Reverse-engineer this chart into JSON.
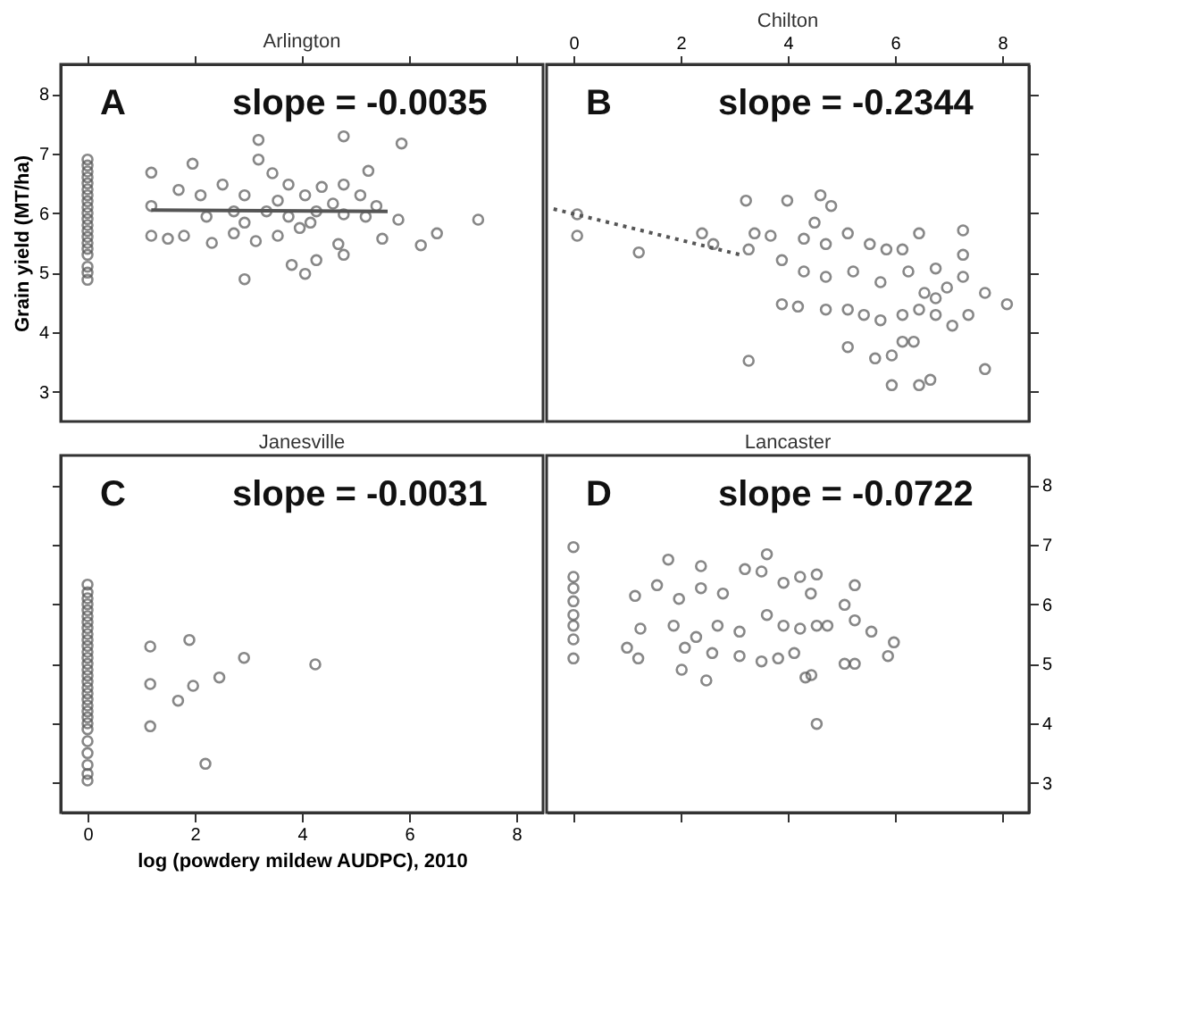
{
  "chart_data": [
    {
      "type": "scatter",
      "title": "Arlington",
      "ylabel": "Grain yield (MT/ha)",
      "annotations": [
        "A",
        "slope = -0.0035"
      ],
      "xlim": [
        -0.5,
        8.5
      ],
      "xticks": [
        {
          "value": 0,
          "label": null
        },
        {
          "value": 2,
          "label": null
        },
        {
          "value": 4,
          "label": null
        },
        {
          "value": 6,
          "label": null
        },
        {
          "value": 8,
          "label": null
        }
      ],
      "ylim": [
        2.5,
        8.5
      ],
      "yticks": [
        3,
        4,
        5,
        6,
        7,
        8
      ],
      "tick_labels": "y",
      "grid": false,
      "marker": "circle",
      "series": [
        {
          "color": "#555555",
          "x": [
            0,
            0,
            0,
            0,
            0,
            0,
            0,
            0,
            0,
            0,
            0,
            0,
            0,
            0,
            0,
            0,
            0,
            0,
            0,
            0,
            1.19,
            1.19,
            1.96,
            3.19,
            3.19,
            4.78,
            5.86,
            5.24,
            7.29,
            6.52,
            6.22,
            2.93,
            3.81,
            4.06,
            4.27,
            4.78,
            4.68,
            5.5,
            5.8,
            1.19,
            1.5,
            1.8,
            2.32,
            2.73,
            3.14,
            3.55,
            3.96,
            4.16,
            1.7,
            2.11,
            2.52,
            2.93,
            3.45,
            3.75,
            4.06,
            4.37,
            4.78,
            5.09,
            5.39,
            5.19,
            2.73,
            3.34,
            3.75,
            4.27,
            4.78,
            2.22,
            2.93,
            3.55,
            4.58
          ],
          "values": [
            6.9,
            6.8,
            6.7,
            6.6,
            6.5,
            6.4,
            6.3,
            6.2,
            6.1,
            6.0,
            5.9,
            5.8,
            5.7,
            5.6,
            5.5,
            5.4,
            5.3,
            5.1,
            5.0,
            4.88,
            6.12,
            6.68,
            6.83,
            7.23,
            6.9,
            7.29,
            7.17,
            6.71,
            5.89,
            5.66,
            5.46,
            4.89,
            5.13,
            4.98,
            5.21,
            5.3,
            5.48,
            5.57,
            5.89,
            5.62,
            5.57,
            5.62,
            5.5,
            5.66,
            5.53,
            5.62,
            5.75,
            5.84,
            6.39,
            6.3,
            6.48,
            6.3,
            6.67,
            6.48,
            6.3,
            6.44,
            6.48,
            6.3,
            6.12,
            5.94,
            6.03,
            6.03,
            5.94,
            6.03,
            5.98,
            5.94,
            5.84,
            6.21,
            6.16
          ]
        },
        {
          "type": "line",
          "marker": "none",
          "color": "#555555",
          "line_style": "solid",
          "x": [
            1.19,
            5.6
          ],
          "values": [
            6.05,
            6.03
          ]
        }
      ]
    },
    {
      "type": "scatter",
      "title": "Chilton",
      "annotations": [
        "B",
        "slope = -0.2344"
      ],
      "xlim": [
        -0.5,
        8.5
      ],
      "xticks": [
        0,
        2,
        4,
        6,
        8
      ],
      "ylim": [
        2.5,
        8.5
      ],
      "yticks": [
        {
          "value": 3,
          "label": null
        },
        {
          "value": 4,
          "label": null
        },
        {
          "value": 5,
          "label": null
        },
        {
          "value": 6,
          "label": null
        },
        {
          "value": 7,
          "label": null
        },
        {
          "value": 8,
          "label": null
        }
      ],
      "tick_labels": "x",
      "grid": false,
      "marker": "circle",
      "series": [
        {
          "color": "#555555",
          "x": [
            0.07,
            0.07,
            1.22,
            2.4,
            2.61,
            3.22,
            3.27,
            3.99,
            4.61,
            4.81,
            3.38,
            3.68,
            3.89,
            4.3,
            4.5,
            4.71,
            5.12,
            5.53,
            5.84,
            6.14,
            6.45,
            7.27,
            7.27,
            3.89,
            4.19,
            4.71,
            5.12,
            5.42,
            5.73,
            6.14,
            6.45,
            6.76,
            7.07,
            7.37,
            7.68,
            8.09,
            4.3,
            4.71,
            5.22,
            5.73,
            6.25,
            6.76,
            7.27,
            5.12,
            5.63,
            5.94,
            6.14,
            6.35,
            3.27,
            5.94,
            6.45,
            6.66,
            7.68,
            6.55,
            6.76,
            6.97
          ],
          "values": [
            5.98,
            5.62,
            5.34,
            5.66,
            5.48,
            6.21,
            5.39,
            6.21,
            6.3,
            6.12,
            5.66,
            5.62,
            5.21,
            5.57,
            5.84,
            5.48,
            5.66,
            5.48,
            5.39,
            5.39,
            5.66,
            5.71,
            5.3,
            4.47,
            4.43,
            4.38,
            4.38,
            4.29,
            4.2,
            4.29,
            4.38,
            4.29,
            4.11,
            4.29,
            4.66,
            4.47,
            5.02,
            4.93,
            5.02,
            4.84,
            5.02,
            5.07,
            4.93,
            3.75,
            3.56,
            3.61,
            3.84,
            3.84,
            3.52,
            3.11,
            3.11,
            3.2,
            3.38,
            4.66,
            4.57,
            4.75
          ]
        },
        {
          "type": "line",
          "marker": "none",
          "color": "#555555",
          "line_style": "dotted",
          "x": [
            -0.37,
            3.12
          ],
          "values": [
            6.07,
            5.3
          ]
        }
      ]
    },
    {
      "type": "scatter",
      "title": "Janesville",
      "xlabel": "log (powdery mildew AUDPC), 2010",
      "annotations": [
        "C",
        "slope = -0.0031"
      ],
      "xlim": [
        -0.5,
        8.5
      ],
      "xticks": [
        0,
        2,
        4,
        6,
        8
      ],
      "ylim": [
        2.5,
        8.5
      ],
      "yticks": [
        {
          "value": 3,
          "label": null
        },
        {
          "value": 4,
          "label": null
        },
        {
          "value": 5,
          "label": null
        },
        {
          "value": 6,
          "label": null
        },
        {
          "value": 7,
          "label": null
        },
        {
          "value": 8,
          "label": null
        }
      ],
      "tick_labels": "x",
      "grid": false,
      "marker": "circle",
      "series": [
        {
          "color": "#555555",
          "x": [
            0,
            0,
            0,
            0,
            0,
            0,
            0,
            0,
            0,
            0,
            0,
            0,
            0,
            0,
            0,
            0,
            0,
            0,
            0,
            0,
            0,
            0,
            0,
            0,
            0,
            0,
            0,
            0,
            0,
            0,
            1.17,
            1.9,
            1.17,
            1.97,
            1.69,
            2.46,
            2.92,
            4.25,
            1.17,
            2.2
          ],
          "values": [
            6.33,
            6.2,
            6.1,
            6.0,
            5.9,
            5.8,
            5.7,
            5.6,
            5.5,
            5.4,
            5.3,
            5.2,
            5.1,
            5.0,
            4.9,
            4.8,
            4.7,
            4.6,
            4.5,
            4.4,
            4.3,
            4.2,
            4.1,
            4.0,
            3.9,
            3.7,
            3.5,
            3.3,
            3.15,
            3.04,
            5.29,
            5.4,
            4.66,
            4.63,
            4.38,
            4.77,
            5.1,
            4.99,
            3.95,
            3.32
          ]
        }
      ]
    },
    {
      "type": "scatter",
      "title": "Lancaster",
      "annotations": [
        "D",
        "slope = -0.0722"
      ],
      "xlim": [
        -0.5,
        8.5
      ],
      "xticks": [
        {
          "value": 0,
          "label": null
        },
        {
          "value": 2,
          "label": null
        },
        {
          "value": 4,
          "label": null
        },
        {
          "value": 6,
          "label": null
        },
        {
          "value": 8,
          "label": null
        }
      ],
      "ylim": [
        2.5,
        8.5
      ],
      "yticks": [
        3,
        4,
        5,
        6,
        7,
        8
      ],
      "tick_labels": "y",
      "grid": false,
      "marker": "circle",
      "series": [
        {
          "color": "#555555",
          "x": [
            0,
            0,
            0,
            0,
            0,
            0,
            0,
            0,
            1.77,
            3.61,
            2.38,
            1.15,
            1.56,
            1.97,
            2.38,
            2.79,
            3.2,
            3.51,
            3.92,
            4.23,
            4.54,
            4.43,
            5.25,
            1.25,
            1.87,
            2.29,
            2.69,
            3.1,
            3.61,
            3.92,
            4.23,
            4.54,
            4.74,
            5.06,
            5.25,
            5.56,
            5.98,
            1.0,
            1.21,
            2.02,
            2.48,
            2.08,
            2.59,
            3.1,
            3.51,
            3.82,
            4.12,
            4.44,
            4.33,
            5.06,
            5.25,
            5.87,
            4.54
          ],
          "values": [
            6.96,
            6.46,
            6.27,
            6.05,
            5.82,
            5.64,
            5.41,
            5.09,
            6.75,
            6.84,
            6.64,
            6.14,
            6.32,
            6.09,
            6.27,
            6.18,
            6.59,
            6.55,
            6.36,
            6.46,
            6.5,
            6.18,
            6.32,
            5.59,
            5.64,
            5.45,
            5.64,
            5.54,
            5.82,
            5.64,
            5.59,
            5.64,
            5.64,
            5.99,
            5.73,
            5.54,
            5.36,
            5.27,
            5.09,
            4.9,
            4.72,
            5.27,
            5.18,
            5.13,
            5.04,
            5.09,
            5.18,
            4.81,
            4.77,
            5.0,
            5.0,
            5.13,
            3.99
          ]
        }
      ]
    }
  ]
}
